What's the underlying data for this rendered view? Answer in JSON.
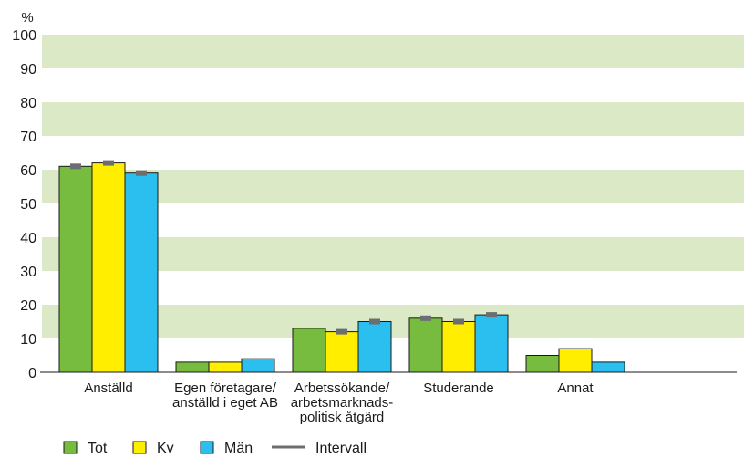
{
  "chart_data": {
    "type": "bar",
    "unit_label": "%",
    "ylim": [
      0,
      100
    ],
    "yticks": [
      0,
      10,
      20,
      30,
      40,
      50,
      60,
      70,
      80,
      90,
      100
    ],
    "categories": [
      [
        "Anställd"
      ],
      [
        "Egen företagare/",
        "anställd i eget AB"
      ],
      [
        "Arbetssökande/",
        "arbetsmarknads-",
        "politisk åtgärd"
      ],
      [
        "Studerande"
      ],
      [
        "Annat"
      ]
    ],
    "series": [
      {
        "name": "Tot",
        "color": "#77bc3f",
        "values": [
          61,
          3,
          13,
          16,
          5
        ],
        "interval": [
          true,
          false,
          false,
          true,
          false
        ]
      },
      {
        "name": "Kv",
        "color": "#ffee00",
        "values": [
          62,
          3,
          12,
          15,
          7
        ],
        "interval": [
          true,
          false,
          true,
          true,
          false
        ]
      },
      {
        "name": "Män",
        "color": "#2bbfef",
        "values": [
          59,
          4,
          15,
          17,
          3
        ],
        "interval": [
          true,
          false,
          true,
          true,
          false
        ]
      }
    ],
    "interval_label": "Intervall",
    "interval_color": "#6d6e71",
    "band_color": "#dbe9c6",
    "grid": "alternating horizontal bands"
  }
}
